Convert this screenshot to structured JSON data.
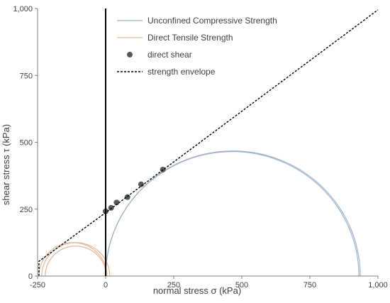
{
  "chart_data": {
    "type": "scatter",
    "xlabel": "normal stress σ (kPa)",
    "ylabel": "shear stress τ (kPa)",
    "xlim": [
      -250,
      1000
    ],
    "ylim": [
      0,
      1000
    ],
    "x_ticks": [
      -250,
      0,
      250,
      500,
      750,
      1000
    ],
    "x_tick_labels": [
      "-250",
      "0",
      "250",
      "500",
      "750",
      "1,000"
    ],
    "y_ticks": [
      0,
      250,
      500,
      750,
      1000
    ],
    "y_tick_labels": [
      "0",
      "250",
      "500",
      "750",
      "1,000"
    ],
    "grid": false,
    "legend_position": "top-center",
    "series": [
      {
        "name": "Unconfined Compressive Strength",
        "kind": "semicircle",
        "color": "#9fb3c8",
        "circles": [
          {
            "sigma3": 0,
            "sigma1": 935
          },
          {
            "sigma3": 0,
            "sigma1": 930
          }
        ]
      },
      {
        "name": "Direct Tensile Strength",
        "kind": "semicircle",
        "color": "#e0b89a",
        "circles": [
          {
            "sigma3": -245,
            "sigma1": 5
          },
          {
            "sigma3": -235,
            "sigma1": 15
          },
          {
            "sigma3": -222,
            "sigma1": 2
          }
        ]
      },
      {
        "name": "direct shear",
        "kind": "points",
        "color": "#595959",
        "points": [
          {
            "x": 0,
            "y": 242
          },
          {
            "x": 20,
            "y": 255
          },
          {
            "x": 40,
            "y": 275
          },
          {
            "x": 80,
            "y": 295
          },
          {
            "x": 130,
            "y": 343
          },
          {
            "x": 210,
            "y": 398
          }
        ]
      },
      {
        "name": "strength envelope",
        "kind": "line",
        "style": "dashed",
        "color": "#000000",
        "points": [
          {
            "x": -245,
            "y": 0
          },
          {
            "x": -245,
            "y": 55
          },
          {
            "x": 0,
            "y": 237
          },
          {
            "x": 1000,
            "y": 995
          }
        ]
      }
    ]
  }
}
